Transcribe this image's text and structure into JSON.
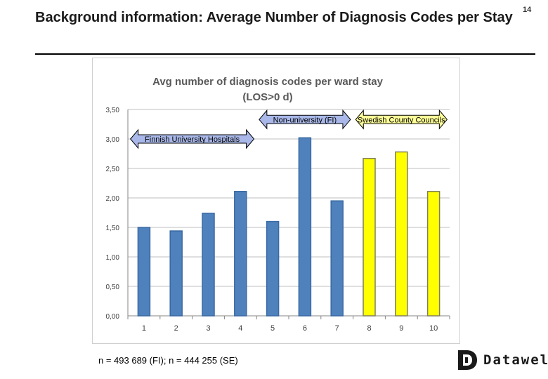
{
  "slide": {
    "title": "Background information: Average Number of Diagnosis Codes per Stay",
    "page_number": "14",
    "footnote": "n = 493 689 (FI); n = 444 255 (SE)",
    "logo_text": "Datawell"
  },
  "chart_data": {
    "type": "bar",
    "title_line1": "Avg number of diagnosis codes per ward stay",
    "title_line2": "(LOS>0 d)",
    "categories": [
      "1",
      "2",
      "3",
      "4",
      "5",
      "6",
      "7",
      "8",
      "9",
      "10"
    ],
    "values": [
      1.5,
      1.44,
      1.74,
      2.11,
      1.6,
      3.02,
      1.95,
      2.67,
      2.78,
      2.11
    ],
    "bar_colors": [
      "#4f81bd",
      "#4f81bd",
      "#4f81bd",
      "#4f81bd",
      "#4f81bd",
      "#4f81bd",
      "#4f81bd",
      "#ffff00",
      "#ffff00",
      "#ffff00"
    ],
    "bar_edge_colors": [
      "#3a6aa3",
      "#3a6aa3",
      "#3a6aa3",
      "#3a6aa3",
      "#3a6aa3",
      "#3a6aa3",
      "#3a6aa3",
      "#7f7f5a",
      "#7f7f5a",
      "#7f7f5a"
    ],
    "ylim": [
      0,
      3.5
    ],
    "yticks": [
      "0,00",
      "0,50",
      "1,00",
      "1,50",
      "2,00",
      "2,50",
      "3,00",
      "3,50"
    ],
    "grid": "horizontal",
    "annotations": [
      {
        "text": "Finnish University Hospitals",
        "from": "1",
        "to": "4",
        "level": 3.0,
        "color": "#a9b8e8"
      },
      {
        "text": "Non-university (FI)",
        "from": "5",
        "to": "7",
        "level": 3.33,
        "color": "#a9b8e8"
      },
      {
        "text": "Swedish County Councils",
        "from": "8",
        "to": "10",
        "level": 3.33,
        "color": "#ffff99"
      }
    ]
  }
}
